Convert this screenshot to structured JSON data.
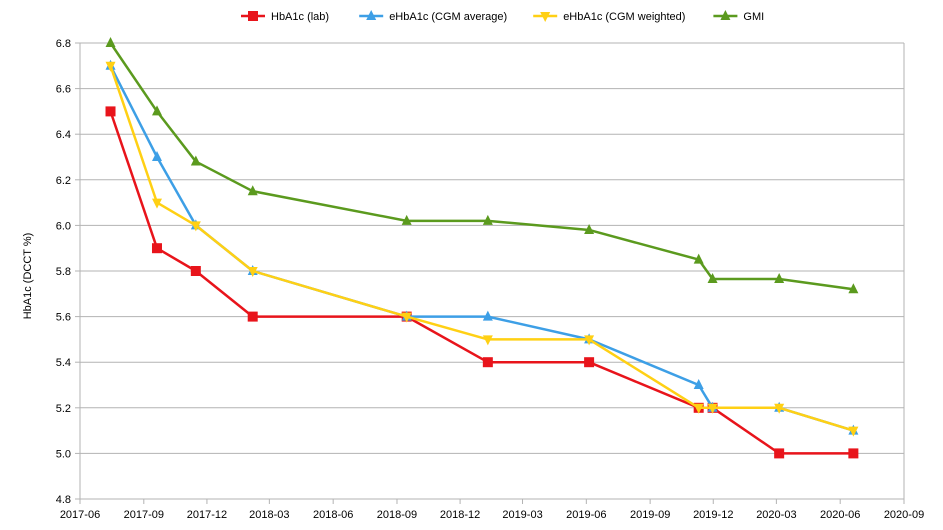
{
  "chart_data": {
    "type": "line",
    "title": "",
    "xlabel": "",
    "ylabel": "HbA1c (DCCT %)",
    "ylim": [
      4.8,
      6.8
    ],
    "y_ticks": [
      "4.8",
      "5.0",
      "5.2",
      "5.4",
      "5.6",
      "5.8",
      "6.0",
      "6.2",
      "6.4",
      "6.6",
      "6.8"
    ],
    "x_ticks": [
      "2017-06",
      "2017-09",
      "2017-12",
      "2018-03",
      "2018-06",
      "2018-09",
      "2018-12",
      "2019-03",
      "2019-06",
      "2019-09",
      "2019-12",
      "2020-03",
      "2020-06",
      "2020-09"
    ],
    "grid": "horizontal",
    "legend_position": "top",
    "series": [
      {
        "name": "HbA1c (lab)",
        "color": "#e8141b",
        "marker": "square",
        "x": [
          "2017-07-15",
          "2017-09-20",
          "2017-11-15",
          "2018-02-05",
          "2018-09-15",
          "2019-01-10",
          "2019-06-05",
          "2019-11-10",
          "2019-11-30",
          "2020-03-05",
          "2020-06-20"
        ],
        "values": [
          6.5,
          5.9,
          5.8,
          5.6,
          5.6,
          5.4,
          5.4,
          5.2,
          5.2,
          5.0,
          5.0
        ]
      },
      {
        "name": "eHbA1c (CGM average)",
        "color": "#3d9fe6",
        "marker": "triangle-up",
        "x": [
          "2017-07-15",
          "2017-09-20",
          "2017-11-15",
          "2018-02-05",
          "2018-09-15",
          "2019-01-10",
          "2019-06-05",
          "2019-11-10",
          "2019-11-30",
          "2020-03-05",
          "2020-06-20"
        ],
        "values": [
          6.7,
          6.3,
          6.0,
          5.8,
          5.6,
          5.6,
          5.5,
          5.3,
          5.2,
          5.2,
          5.1
        ]
      },
      {
        "name": "eHbA1c (CGM weighted)",
        "color": "#ffd014",
        "marker": "triangle-down",
        "x": [
          "2017-07-15",
          "2017-09-20",
          "2017-11-15",
          "2018-02-05",
          "2018-09-15",
          "2019-01-10",
          "2019-06-05",
          "2019-11-10",
          "2019-11-30",
          "2020-03-05",
          "2020-06-20"
        ],
        "values": [
          6.7,
          6.1,
          6.0,
          5.8,
          5.6,
          5.5,
          5.5,
          5.2,
          5.2,
          5.2,
          5.1
        ]
      },
      {
        "name": "GMI",
        "color": "#5b9a1e",
        "marker": "triangle-up",
        "x": [
          "2017-07-15",
          "2017-09-20",
          "2017-11-15",
          "2018-02-05",
          "2018-09-15",
          "2019-01-10",
          "2019-06-05",
          "2019-11-10",
          "2019-11-30",
          "2020-03-05",
          "2020-06-20"
        ],
        "values": [
          6.8,
          6.5,
          6.28,
          6.15,
          6.02,
          6.02,
          5.98,
          5.85,
          5.765,
          5.765,
          5.72
        ]
      }
    ]
  }
}
